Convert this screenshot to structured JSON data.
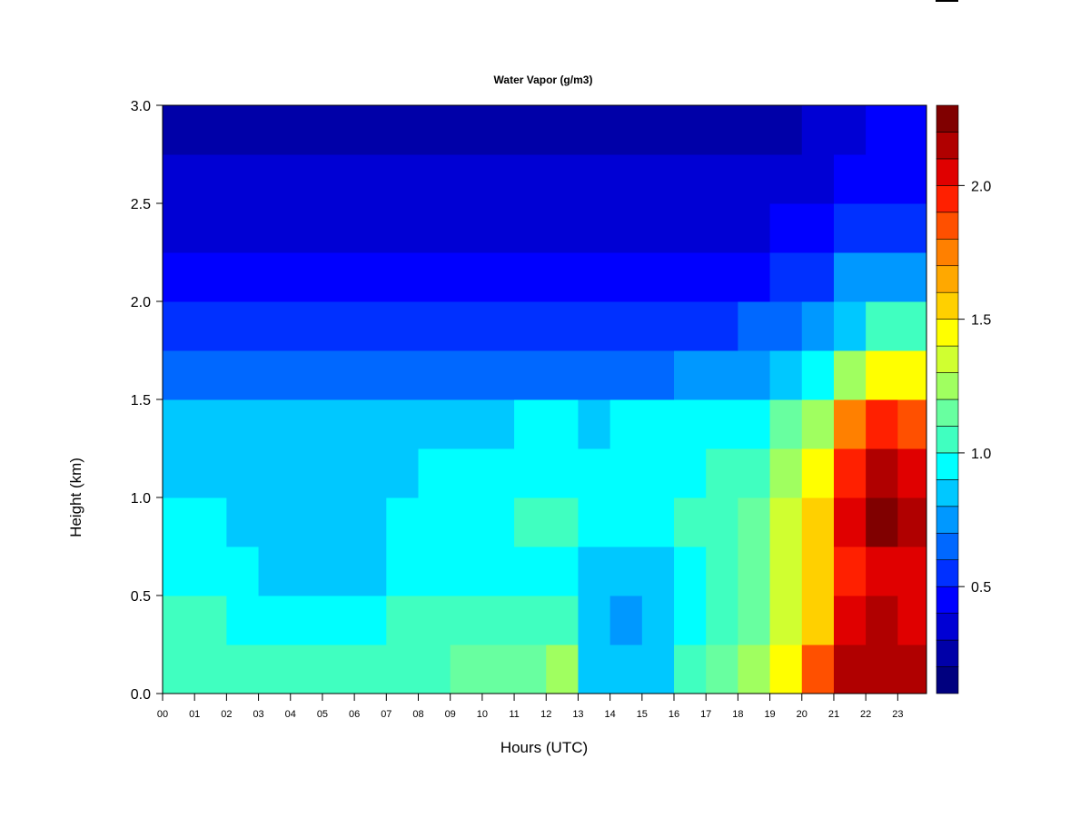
{
  "chart_data": {
    "type": "heatmap",
    "title": "Water Vapor (g/m3)",
    "xlabel": "Hours (UTC)",
    "ylabel": "Height (km)",
    "xlim": [
      0,
      23.9
    ],
    "ylim": [
      0,
      3.0
    ],
    "x_ticks": [
      "00",
      "01",
      "02",
      "03",
      "04",
      "05",
      "06",
      "07",
      "08",
      "09",
      "10",
      "11",
      "12",
      "13",
      "14",
      "15",
      "16",
      "17",
      "18",
      "19",
      "20",
      "21",
      "22",
      "23"
    ],
    "y_ticks": [
      "0.0",
      "0.5",
      "1.0",
      "1.5",
      "2.0",
      "2.5",
      "3.0"
    ],
    "colorbar": {
      "range": [
        0.1,
        2.3
      ],
      "step": 0.1,
      "ticks": [
        "0.5",
        "1.0",
        "1.5",
        "2.0"
      ],
      "colors": [
        "#00007F",
        "#0000A8",
        "#0000D4",
        "#0000FF",
        "#0030FF",
        "#0068FF",
        "#0098FF",
        "#00C8FF",
        "#00FFFF",
        "#40FFC0",
        "#68FFA0",
        "#A0FF60",
        "#D0FF30",
        "#FFFF00",
        "#FFD000",
        "#FFA800",
        "#FF8000",
        "#FF5000",
        "#FF2000",
        "#E00000",
        "#B00000",
        "#800000"
      ]
    },
    "grid": false,
    "hours": [
      0,
      1,
      2,
      3,
      4,
      5,
      6,
      7,
      8,
      9,
      10,
      11,
      12,
      13,
      14,
      15,
      16,
      17,
      18,
      19,
      20,
      21,
      22,
      23
    ],
    "heights_km": [
      0.125,
      0.375,
      0.625,
      0.875,
      1.125,
      1.375,
      1.625,
      1.875,
      2.125,
      2.375,
      2.625,
      2.875
    ],
    "values": [
      [
        1.0,
        1.0,
        1.0,
        1.0,
        1.0,
        1.0,
        1.0,
        1.0,
        1.05,
        1.1,
        1.1,
        1.15,
        1.2,
        0.85,
        0.8,
        0.85,
        1.0,
        1.1,
        1.25,
        1.4,
        1.8,
        2.1,
        2.15,
        2.1
      ],
      [
        1.05,
        1.0,
        0.95,
        0.95,
        0.95,
        0.95,
        0.95,
        1.0,
        1.0,
        1.0,
        1.0,
        1.0,
        1.05,
        0.8,
        0.75,
        0.8,
        0.95,
        1.05,
        1.15,
        1.3,
        1.55,
        2.05,
        2.1,
        2.05
      ],
      [
        0.95,
        0.9,
        0.9,
        0.85,
        0.85,
        0.85,
        0.85,
        0.9,
        0.9,
        0.95,
        0.95,
        0.95,
        0.95,
        0.85,
        0.8,
        0.85,
        0.9,
        1.0,
        1.1,
        1.3,
        1.5,
        1.95,
        2.05,
        2.0
      ],
      [
        0.9,
        0.9,
        0.85,
        0.85,
        0.85,
        0.85,
        0.85,
        0.9,
        0.9,
        0.95,
        0.95,
        1.0,
        1.0,
        0.95,
        0.95,
        0.95,
        1.0,
        1.0,
        1.1,
        1.3,
        1.5,
        2.0,
        2.2,
        2.1
      ],
      [
        0.85,
        0.85,
        0.85,
        0.8,
        0.8,
        0.85,
        0.85,
        0.85,
        0.9,
        0.9,
        0.95,
        0.95,
        0.95,
        0.9,
        0.95,
        0.95,
        0.95,
        1.0,
        1.05,
        1.25,
        1.45,
        1.95,
        2.15,
        2.05
      ],
      [
        0.8,
        0.8,
        0.8,
        0.8,
        0.8,
        0.8,
        0.8,
        0.8,
        0.85,
        0.85,
        0.85,
        0.9,
        0.9,
        0.85,
        0.9,
        0.9,
        0.9,
        0.9,
        0.95,
        1.1,
        1.25,
        1.7,
        1.9,
        1.85
      ],
      [
        0.6,
        0.6,
        0.6,
        0.6,
        0.6,
        0.6,
        0.6,
        0.6,
        0.6,
        0.6,
        0.6,
        0.6,
        0.6,
        0.6,
        0.6,
        0.65,
        0.7,
        0.7,
        0.75,
        0.85,
        0.95,
        1.2,
        1.45,
        1.4
      ],
      [
        0.5,
        0.5,
        0.5,
        0.5,
        0.5,
        0.5,
        0.5,
        0.5,
        0.5,
        0.5,
        0.5,
        0.5,
        0.5,
        0.5,
        0.5,
        0.5,
        0.55,
        0.55,
        0.6,
        0.65,
        0.7,
        0.85,
        1.0,
        1.0
      ],
      [
        0.4,
        0.4,
        0.4,
        0.4,
        0.4,
        0.4,
        0.4,
        0.4,
        0.4,
        0.4,
        0.4,
        0.4,
        0.4,
        0.4,
        0.4,
        0.4,
        0.4,
        0.4,
        0.45,
        0.5,
        0.55,
        0.7,
        0.75,
        0.75
      ],
      [
        0.35,
        0.35,
        0.35,
        0.35,
        0.35,
        0.35,
        0.35,
        0.35,
        0.35,
        0.35,
        0.35,
        0.35,
        0.35,
        0.35,
        0.35,
        0.35,
        0.35,
        0.35,
        0.35,
        0.4,
        0.45,
        0.5,
        0.55,
        0.55
      ],
      [
        0.3,
        0.3,
        0.3,
        0.3,
        0.3,
        0.3,
        0.3,
        0.3,
        0.3,
        0.3,
        0.3,
        0.3,
        0.3,
        0.3,
        0.3,
        0.3,
        0.3,
        0.3,
        0.3,
        0.3,
        0.35,
        0.4,
        0.45,
        0.45
      ],
      [
        0.2,
        0.2,
        0.2,
        0.2,
        0.2,
        0.2,
        0.2,
        0.2,
        0.2,
        0.2,
        0.2,
        0.2,
        0.2,
        0.2,
        0.2,
        0.2,
        0.2,
        0.2,
        0.2,
        0.25,
        0.3,
        0.35,
        0.4,
        0.4
      ]
    ]
  }
}
